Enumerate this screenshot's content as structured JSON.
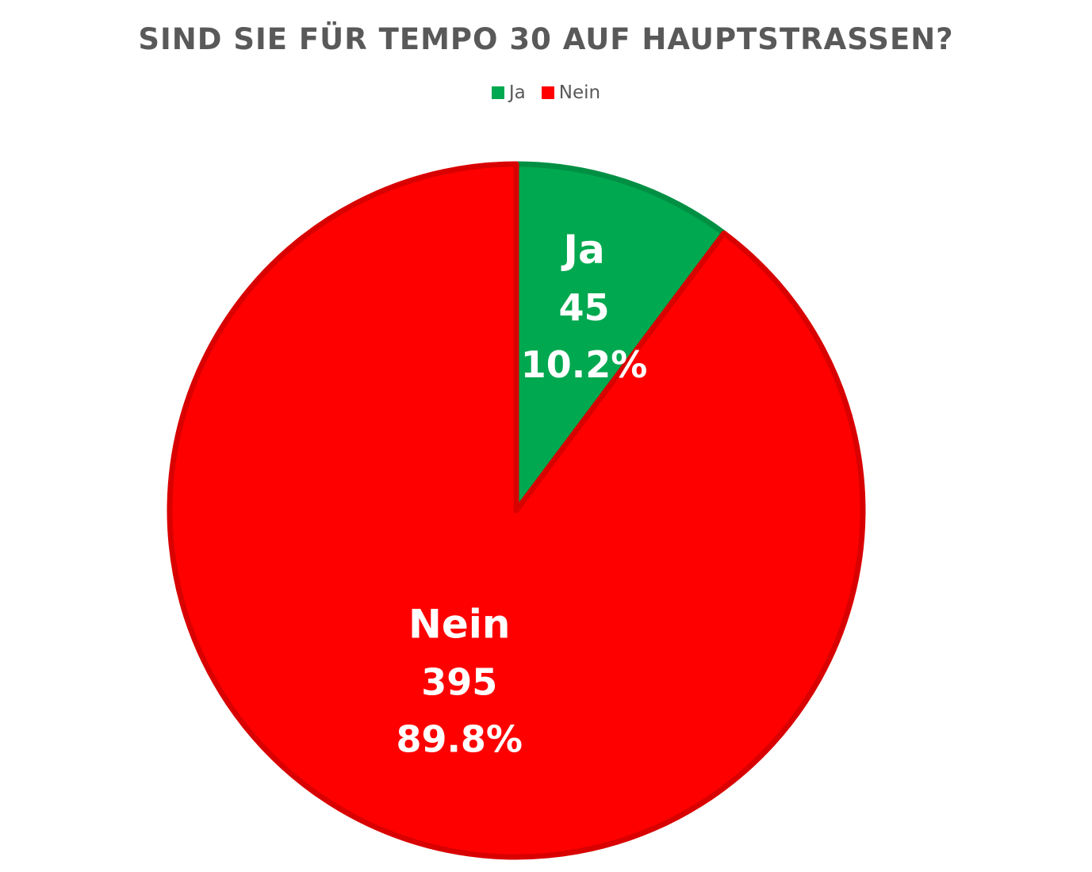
{
  "chart_data": {
    "type": "pie",
    "title": "SIND SIE FÜR TEMPO 30 AUF HAUPTSTRASSEN?",
    "legend_position": "top",
    "slices": [
      {
        "label": "Ja",
        "value": 45,
        "percent_label": "10.2%",
        "color": "#00A84F"
      },
      {
        "label": "Nein",
        "value": 395,
        "percent_label": "89.8%",
        "color": "#FF0000"
      }
    ],
    "legend": [
      {
        "label": "Ja",
        "color": "#00A84F"
      },
      {
        "label": "Nein",
        "color": "#FF0000"
      }
    ]
  }
}
